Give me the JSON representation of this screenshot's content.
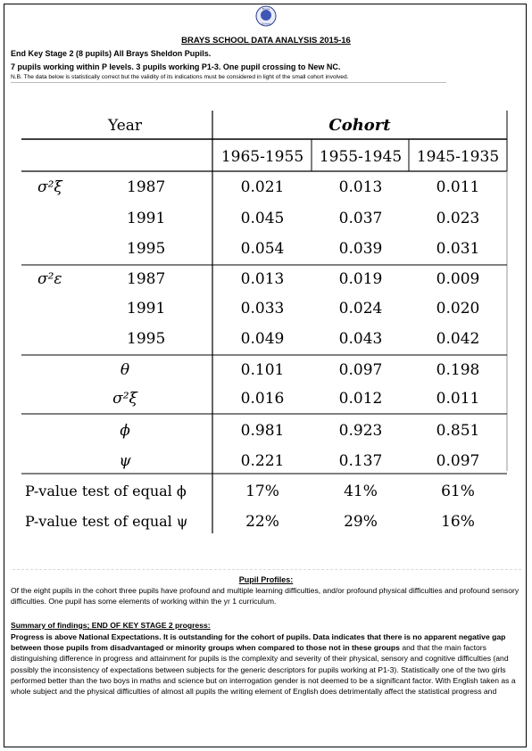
{
  "logo_text": [
    "Brays",
    "School"
  ],
  "title": "BRAYS SCHOOL DATA ANALYSIS 2015-16",
  "header_line1": "End Key Stage 2 (8 pupils)   All Brays Sheldon Pupils.",
  "header_line2": "7 pupils working within P levels. 3 pupils working P1-3. One pupil crossing to New NC.",
  "note": "N.B. The data below is statistically correct but the validity of its indications must be considered in light of the small cohort involved.",
  "table": {
    "year_header": "Year",
    "cohort_header": "Cohort",
    "columns": [
      "1965-1955",
      "1955-1945",
      "1945-1935"
    ],
    "groups": [
      {
        "symbol": "σ²ξ",
        "rows": [
          {
            "year": "1987",
            "values": [
              "0.021",
              "0.013",
              "0.011"
            ]
          },
          {
            "year": "1991",
            "values": [
              "0.045",
              "0.037",
              "0.023"
            ]
          },
          {
            "year": "1995",
            "values": [
              "0.054",
              "0.039",
              "0.031"
            ]
          }
        ]
      },
      {
        "symbol": "σ²ε",
        "rows": [
          {
            "year": "1987",
            "values": [
              "0.013",
              "0.019",
              "0.009"
            ]
          },
          {
            "year": "1991",
            "values": [
              "0.033",
              "0.024",
              "0.020"
            ]
          },
          {
            "year": "1995",
            "values": [
              "0.049",
              "0.043",
              "0.042"
            ]
          }
        ]
      }
    ],
    "param_rows": [
      {
        "label": "θ",
        "values": [
          "0.101",
          "0.097",
          "0.198"
        ]
      },
      {
        "label": "σ²ξ",
        "values": [
          "0.016",
          "0.012",
          "0.011"
        ]
      },
      {
        "label": "ϕ",
        "values": [
          "0.981",
          "0.923",
          "0.851"
        ]
      },
      {
        "label": "ψ",
        "values": [
          "0.221",
          "0.137",
          "0.097"
        ]
      }
    ],
    "pvalue_rows": [
      {
        "label": "P-value test of equal ϕ",
        "values": [
          "17%",
          "41%",
          "61%"
        ]
      },
      {
        "label": "P-value test of equal ψ",
        "values": [
          "22%",
          "29%",
          "16%"
        ]
      }
    ]
  },
  "profiles_title": "Pupil Profiles:",
  "profiles_text": "Of the eight pupils in the cohort three pupils have profound and multiple learning difficulties, and/or profound physical difficulties and profound sensory difficulties. One pupil has some elements of working within the yr 1 curriculum.",
  "summary_title": "Summary of findings; END OF KEY STAGE 2 progress:",
  "summary_bold": "Progress is above National Expectations. It is outstanding for the cohort of pupils. Data indicates that there is no apparent negative gap between those pupils from disadvantaged or minority groups when compared to those not in these groups",
  "summary_text": " and that the main factors distinguishing difference in progress and attainment for pupils is the complexity and severity of their physical, sensory and cognitive difficulties (and possibly the inconsistency of expectations between subjects for the generic descriptors for pupils working at P1-3). Statistically one of the two girls performed better than the two boys in maths and science but on interrogation gender is not deemed to be a significant factor. With English taken as a whole subject and the physical difficulties of almost all pupils the writing element of English does detrimentally affect the statistical progress and"
}
